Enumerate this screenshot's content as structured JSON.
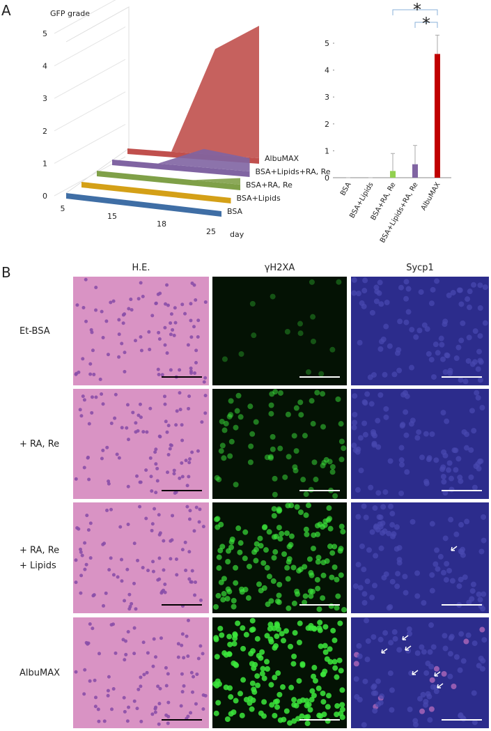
{
  "panel_a": {
    "letter": "A"
  },
  "chart_data": [
    {
      "type": "area3d",
      "ylabel": "GFP grade",
      "xlabel": "day",
      "categories": [
        "5",
        "15",
        "18",
        "25"
      ],
      "ylim": [
        0,
        5
      ],
      "yticks": [
        0,
        1,
        2,
        3,
        4,
        5
      ],
      "series": [
        {
          "name": "BSA",
          "color": "#3f6ea5",
          "values": [
            0,
            0,
            0,
            0
          ]
        },
        {
          "name": "BSA+Lipids",
          "color": "#d4a017",
          "values": [
            0,
            0,
            0,
            0
          ]
        },
        {
          "name": "BSA+RA, Re",
          "color": "#7fa048",
          "values": [
            0,
            0,
            0,
            0.25
          ]
        },
        {
          "name": "BSA+Lipids+RA, Re",
          "color": "#8064a2",
          "values": [
            0,
            0,
            0.7,
            0.5
          ]
        },
        {
          "name": "AlbuMAX",
          "color": "#c0504d",
          "values": [
            0,
            0,
            4,
            5
          ]
        }
      ]
    },
    {
      "type": "bar",
      "categories": [
        "BSA",
        "BSA+Lipids",
        "BSA+RA, Re",
        "BSA+Lipids+RA, Re",
        "AlbuMAX"
      ],
      "values": [
        0,
        0,
        0.25,
        0.5,
        4.6
      ],
      "errors": [
        0,
        0,
        0.65,
        0.7,
        0.7
      ],
      "colors": [
        "#4f81bd",
        "#f0b400",
        "#92d050",
        "#8064a2",
        "#c00000"
      ],
      "ylim": [
        0,
        5
      ],
      "yticks": [
        0,
        1,
        2,
        3,
        4,
        5
      ],
      "annotations": [
        "*",
        "*"
      ]
    }
  ],
  "panel_b": {
    "letter": "B",
    "columns": [
      "H.E.",
      "γH2XA",
      "Sycp1"
    ],
    "rows": [
      [
        "Et-BSA"
      ],
      [
        "+ RA, Re"
      ],
      [
        "+ RA, Re",
        "+ Lipids"
      ],
      [
        "AlbuMAX"
      ]
    ]
  }
}
